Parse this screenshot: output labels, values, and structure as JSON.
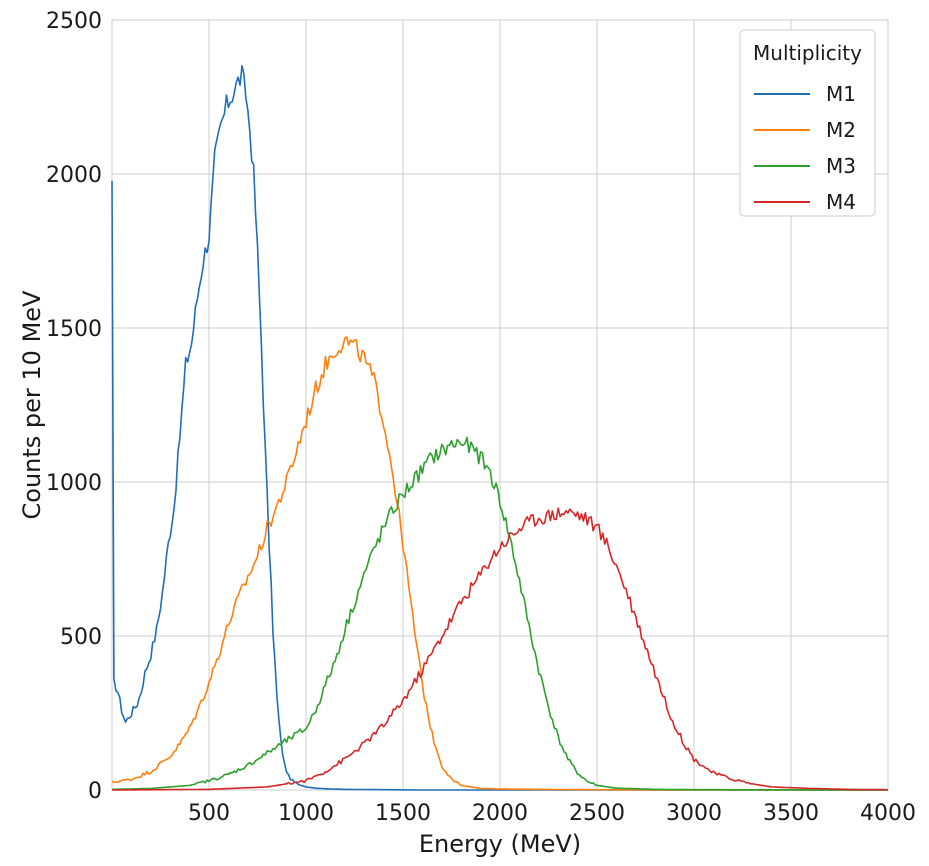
{
  "chart_data": {
    "type": "line",
    "title": "",
    "xlabel": "Energy (MeV)",
    "ylabel": "Counts per 10 MeV",
    "xlim": [
      0,
      4000
    ],
    "ylim": [
      0,
      2500
    ],
    "xticks": [
      500,
      1000,
      1500,
      2000,
      2500,
      3000,
      3500,
      4000
    ],
    "xtick_labels": [
      "500",
      "1000",
      "1500",
      "2000",
      "2500",
      "3000",
      "3500",
      "4000"
    ],
    "yticks": [
      0,
      500,
      1000,
      1500,
      2000,
      2500
    ],
    "ytick_labels": [
      "0",
      "500",
      "1000",
      "1500",
      "2000",
      "2500"
    ],
    "grid": true,
    "legend": {
      "title": "Multiplicity",
      "position": "top-right"
    },
    "series": [
      {
        "name": "M1",
        "color": "#1f6fb5",
        "x": [
          0,
          10,
          30,
          50,
          70,
          90,
          110,
          130,
          150,
          170,
          200,
          230,
          260,
          290,
          320,
          350,
          380,
          410,
          440,
          470,
          500,
          530,
          560,
          590,
          620,
          650,
          670,
          690,
          710,
          730,
          750,
          770,
          790,
          810,
          830,
          850,
          870,
          890,
          910,
          930,
          960,
          1000,
          1050,
          1100,
          1200,
          1400,
          1600,
          2000,
          3000,
          4000
        ],
        "y": [
          1950,
          350,
          320,
          260,
          220,
          240,
          260,
          280,
          320,
          380,
          440,
          520,
          640,
          800,
          920,
          1150,
          1380,
          1450,
          1600,
          1720,
          1800,
          2050,
          2150,
          2220,
          2260,
          2300,
          2320,
          2260,
          2150,
          2000,
          1750,
          1450,
          1100,
          800,
          520,
          300,
          160,
          80,
          45,
          30,
          18,
          10,
          6,
          4,
          2,
          1,
          0,
          0,
          0,
          0
        ]
      },
      {
        "name": "M2",
        "color": "#ff7f0e",
        "x": [
          0,
          100,
          200,
          300,
          350,
          400,
          450,
          500,
          550,
          600,
          650,
          700,
          750,
          800,
          850,
          900,
          950,
          1000,
          1050,
          1100,
          1150,
          1200,
          1250,
          1300,
          1350,
          1400,
          1450,
          1500,
          1550,
          1600,
          1650,
          1700,
          1750,
          1800,
          1900,
          2000,
          2200,
          2500,
          3000,
          4000
        ],
        "y": [
          25,
          35,
          60,
          110,
          150,
          200,
          270,
          350,
          440,
          540,
          620,
          690,
          760,
          850,
          920,
          1000,
          1100,
          1200,
          1300,
          1380,
          1430,
          1460,
          1440,
          1400,
          1330,
          1200,
          1020,
          800,
          560,
          340,
          180,
          80,
          35,
          15,
          5,
          3,
          2,
          1,
          0,
          0
        ]
      },
      {
        "name": "M3",
        "color": "#2ca02c",
        "x": [
          0,
          200,
          400,
          500,
          600,
          700,
          800,
          900,
          1000,
          1050,
          1100,
          1150,
          1200,
          1250,
          1300,
          1350,
          1400,
          1450,
          1500,
          1550,
          1600,
          1650,
          1700,
          1750,
          1800,
          1850,
          1900,
          1950,
          2000,
          2050,
          2100,
          2150,
          2200,
          2250,
          2300,
          2350,
          2400,
          2450,
          2500,
          2600,
          2800,
          3000,
          4000
        ],
        "y": [
          2,
          5,
          15,
          30,
          50,
          80,
          120,
          160,
          200,
          260,
          340,
          420,
          520,
          610,
          700,
          780,
          850,
          910,
          960,
          1000,
          1040,
          1080,
          1100,
          1120,
          1130,
          1110,
          1080,
          1030,
          940,
          820,
          680,
          530,
          390,
          270,
          170,
          100,
          55,
          28,
          15,
          6,
          2,
          1,
          0
        ]
      },
      {
        "name": "M4",
        "color": "#d62728",
        "x": [
          0,
          500,
          800,
          1000,
          1100,
          1200,
          1300,
          1400,
          1500,
          1600,
          1700,
          1800,
          1900,
          1950,
          2000,
          2050,
          2100,
          2150,
          2200,
          2250,
          2300,
          2350,
          2400,
          2450,
          2500,
          2550,
          2600,
          2650,
          2700,
          2750,
          2800,
          2850,
          2900,
          2950,
          3000,
          3100,
          3200,
          3300,
          3400,
          3600,
          3800,
          4000
        ],
        "y": [
          0,
          2,
          10,
          30,
          60,
          100,
          150,
          210,
          290,
          390,
          500,
          610,
          700,
          750,
          790,
          820,
          850,
          870,
          885,
          890,
          900,
          905,
          895,
          880,
          850,
          800,
          730,
          650,
          560,
          470,
          380,
          290,
          210,
          150,
          100,
          55,
          35,
          20,
          10,
          5,
          2,
          1
        ]
      }
    ]
  }
}
